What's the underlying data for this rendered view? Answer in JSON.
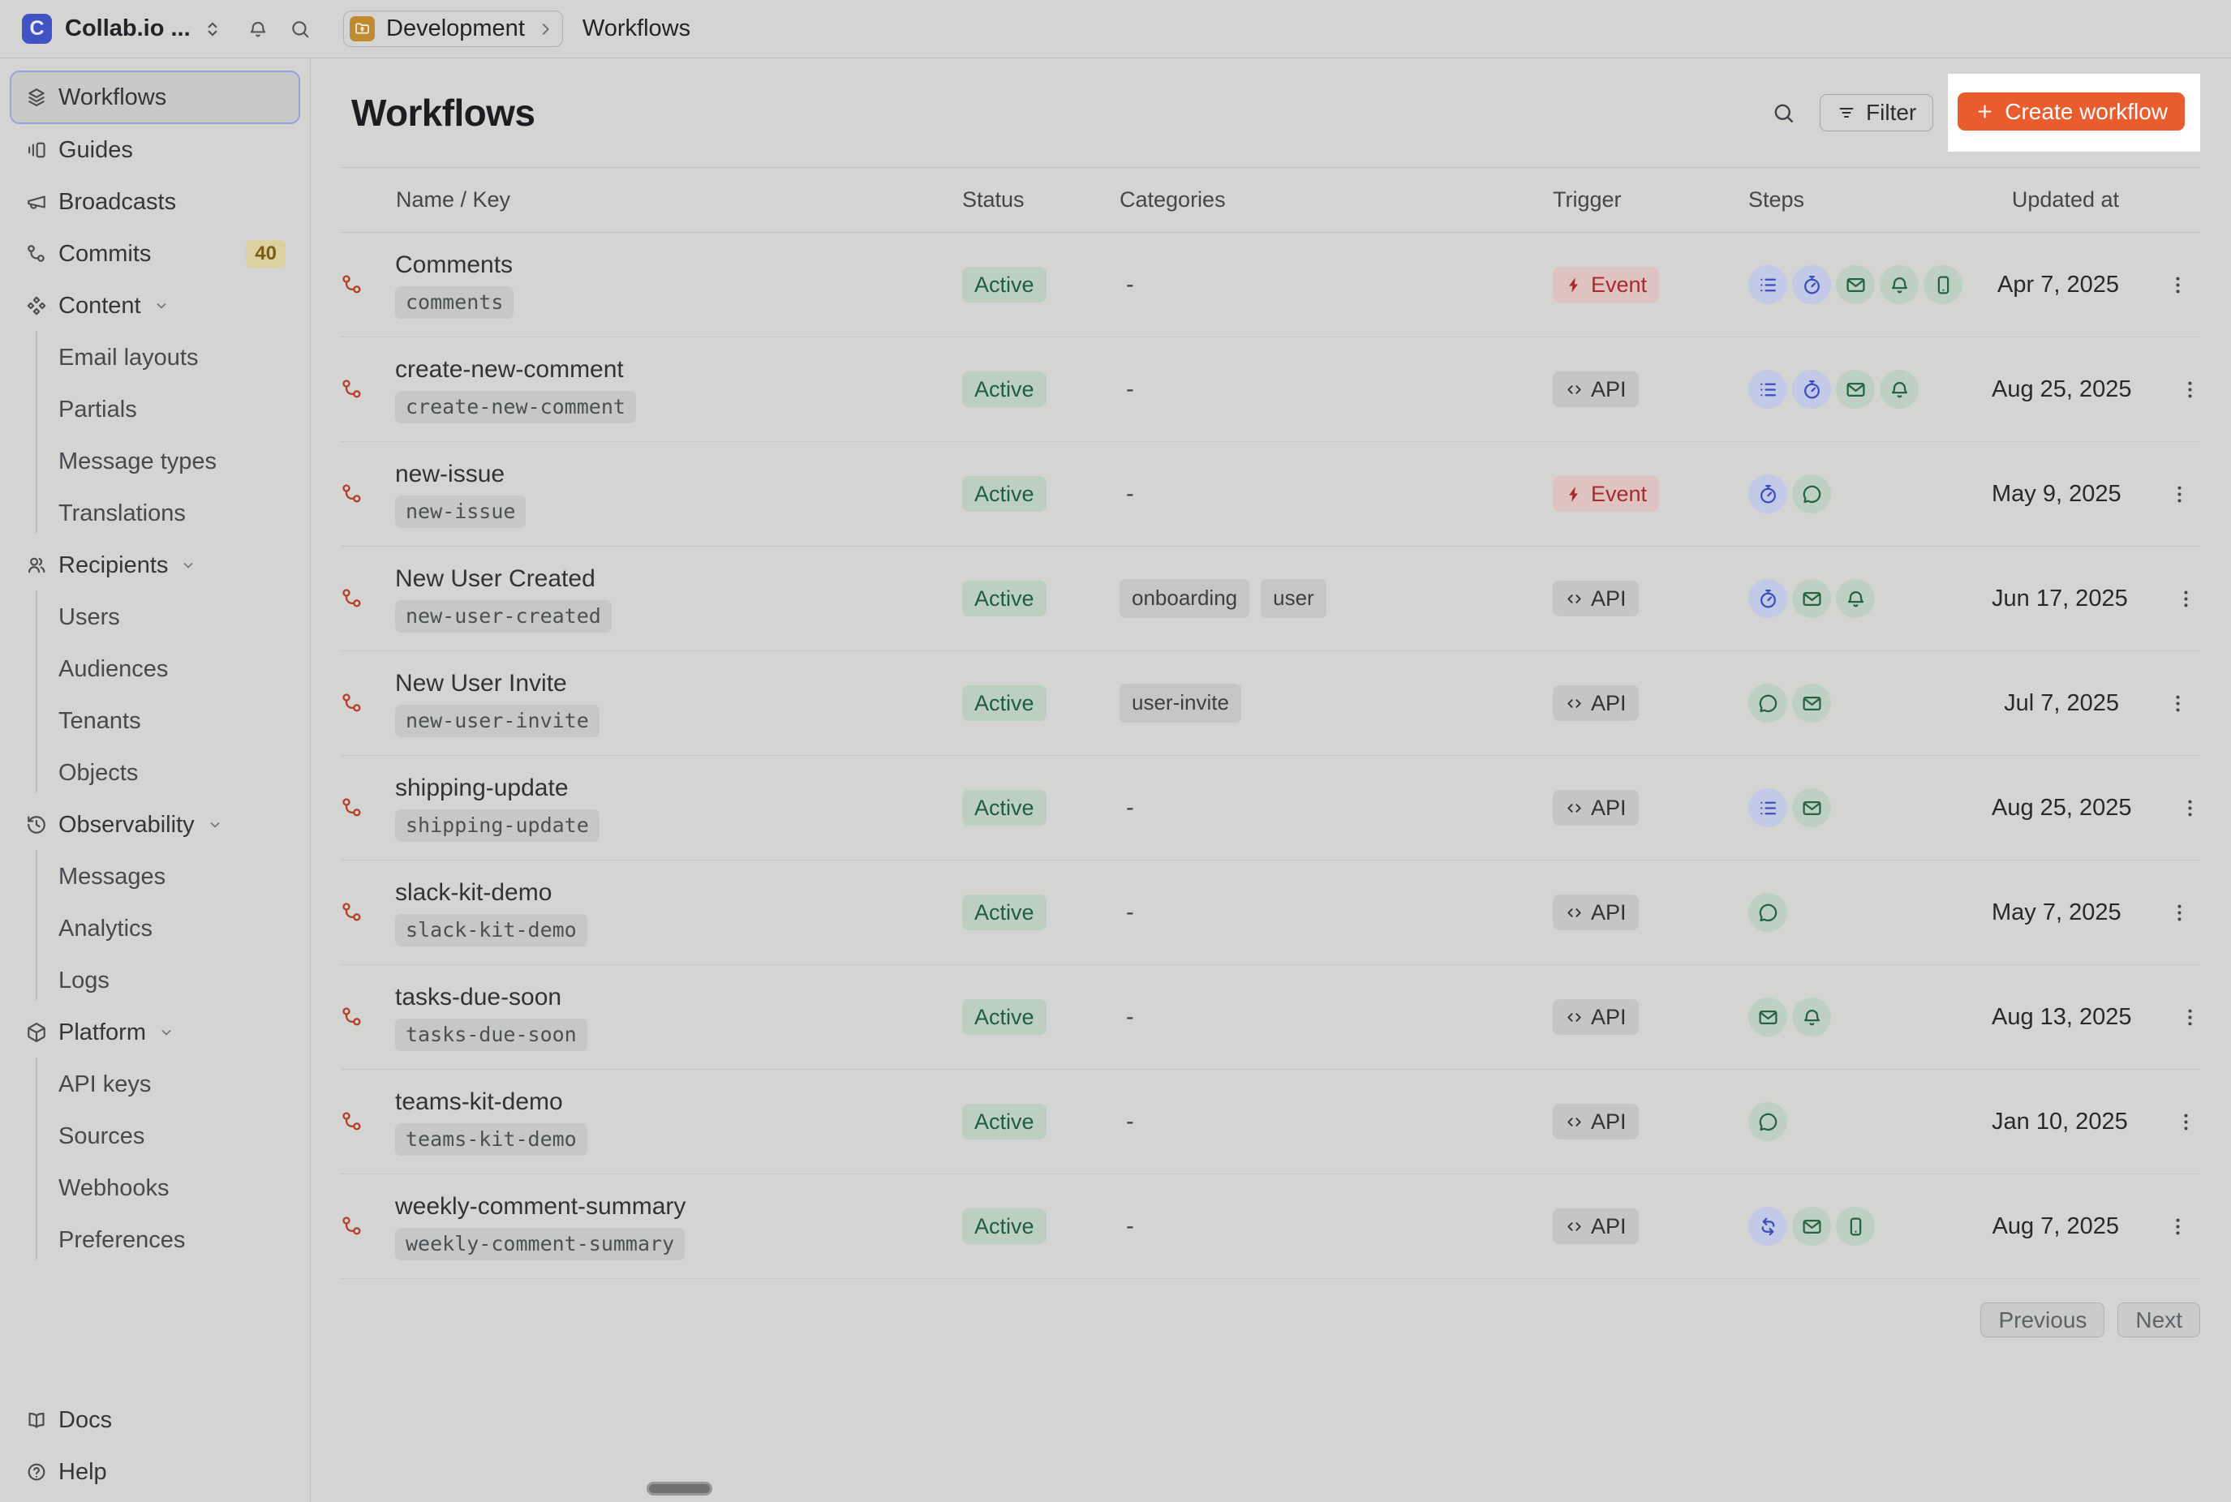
{
  "topbar": {
    "account": "Collab.io ...",
    "breadcrumb": {
      "environment": "Development",
      "page": "Workflows"
    }
  },
  "sidebar": {
    "items": [
      {
        "label": "Workflows",
        "icon": "layers",
        "active": true
      },
      {
        "label": "Guides",
        "icon": "guides"
      },
      {
        "label": "Broadcasts",
        "icon": "megaphone"
      },
      {
        "label": "Commits",
        "icon": "commit",
        "badge": "40"
      },
      {
        "label": "Content",
        "icon": "content",
        "expandable": true
      },
      {
        "label": "Email layouts",
        "sub": true
      },
      {
        "label": "Partials",
        "sub": true
      },
      {
        "label": "Message types",
        "sub": true
      },
      {
        "label": "Translations",
        "sub": true,
        "groupEnd": true
      },
      {
        "label": "Recipients",
        "icon": "people",
        "expandable": true
      },
      {
        "label": "Users",
        "sub": true
      },
      {
        "label": "Audiences",
        "sub": true
      },
      {
        "label": "Tenants",
        "sub": true
      },
      {
        "label": "Objects",
        "sub": true,
        "groupEnd": true
      },
      {
        "label": "Observability",
        "icon": "history",
        "expandable": true
      },
      {
        "label": "Messages",
        "sub": true
      },
      {
        "label": "Analytics",
        "sub": true
      },
      {
        "label": "Logs",
        "sub": true,
        "groupEnd": true
      },
      {
        "label": "Platform",
        "icon": "box",
        "expandable": true
      },
      {
        "label": "API keys",
        "sub": true
      },
      {
        "label": "Sources",
        "sub": true
      },
      {
        "label": "Webhooks",
        "sub": true
      },
      {
        "label": "Preferences",
        "sub": true,
        "groupEnd": true
      }
    ],
    "footer": [
      {
        "label": "Docs",
        "icon": "book"
      },
      {
        "label": "Help",
        "icon": "help"
      }
    ]
  },
  "page": {
    "title": "Workflows",
    "filter_label": "Filter",
    "create_label": "Create workflow"
  },
  "table": {
    "columns": [
      "Name / Key",
      "Status",
      "Categories",
      "Trigger",
      "Steps",
      "Updated at"
    ],
    "empty_category": "-",
    "rows": [
      {
        "name": "Comments",
        "key": "comments",
        "status": "Active",
        "categories": [],
        "trigger": "Event",
        "steps": [
          "batch",
          "delay",
          "email",
          "in-app",
          "push"
        ],
        "updated": "Apr 7, 2025"
      },
      {
        "name": "create-new-comment",
        "key": "create-new-comment",
        "status": "Active",
        "categories": [],
        "trigger": "API",
        "steps": [
          "batch",
          "delay",
          "email",
          "in-app"
        ],
        "updated": "Aug 25, 2025"
      },
      {
        "name": "new-issue",
        "key": "new-issue",
        "status": "Active",
        "categories": [],
        "trigger": "Event",
        "steps": [
          "delay",
          "chat"
        ],
        "updated": "May 9, 2025"
      },
      {
        "name": "New User Created",
        "key": "new-user-created",
        "status": "Active",
        "categories": [
          "onboarding",
          "user"
        ],
        "trigger": "API",
        "steps": [
          "delay",
          "email",
          "in-app"
        ],
        "updated": "Jun 17, 2025"
      },
      {
        "name": "New User Invite",
        "key": "new-user-invite",
        "status": "Active",
        "categories": [
          "user-invite"
        ],
        "trigger": "API",
        "steps": [
          "chat",
          "email"
        ],
        "updated": "Jul 7, 2025"
      },
      {
        "name": "shipping-update",
        "key": "shipping-update",
        "status": "Active",
        "categories": [],
        "trigger": "API",
        "steps": [
          "batch",
          "email"
        ],
        "updated": "Aug 25, 2025"
      },
      {
        "name": "slack-kit-demo",
        "key": "slack-kit-demo",
        "status": "Active",
        "categories": [],
        "trigger": "API",
        "steps": [
          "chat"
        ],
        "updated": "May 7, 2025"
      },
      {
        "name": "tasks-due-soon",
        "key": "tasks-due-soon",
        "status": "Active",
        "categories": [],
        "trigger": "API",
        "steps": [
          "email",
          "in-app"
        ],
        "updated": "Aug 13, 2025"
      },
      {
        "name": "teams-kit-demo",
        "key": "teams-kit-demo",
        "status": "Active",
        "categories": [],
        "trigger": "API",
        "steps": [
          "chat"
        ],
        "updated": "Jan 10, 2025"
      },
      {
        "name": "weekly-comment-summary",
        "key": "weekly-comment-summary",
        "status": "Active",
        "categories": [],
        "trigger": "API",
        "steps": [
          "fetch",
          "email",
          "push"
        ],
        "updated": "Aug 7, 2025"
      }
    ],
    "pagination": {
      "previous": "Previous",
      "next": "Next"
    }
  },
  "colors": {
    "page_bg": "#d4d4d2",
    "accent_orange": "#e95c2e",
    "highlight_white": "#ffffff",
    "brand_blue": "#4152c5",
    "env_folder_orange": "#bf8b2e",
    "status_active_bg": "#bdcfc1",
    "status_active_text": "#1f5f3b",
    "trigger_event_bg": "#dfc3c1",
    "trigger_event_text": "#a82a30",
    "step_blue": "#3b50bb",
    "step_blue_bg": "#c3cae8",
    "step_green": "#27633f",
    "step_green_bg": "#bed0c3",
    "commits_badge_bg": "#ddd0a0",
    "commits_badge_text": "#7b5c17"
  }
}
